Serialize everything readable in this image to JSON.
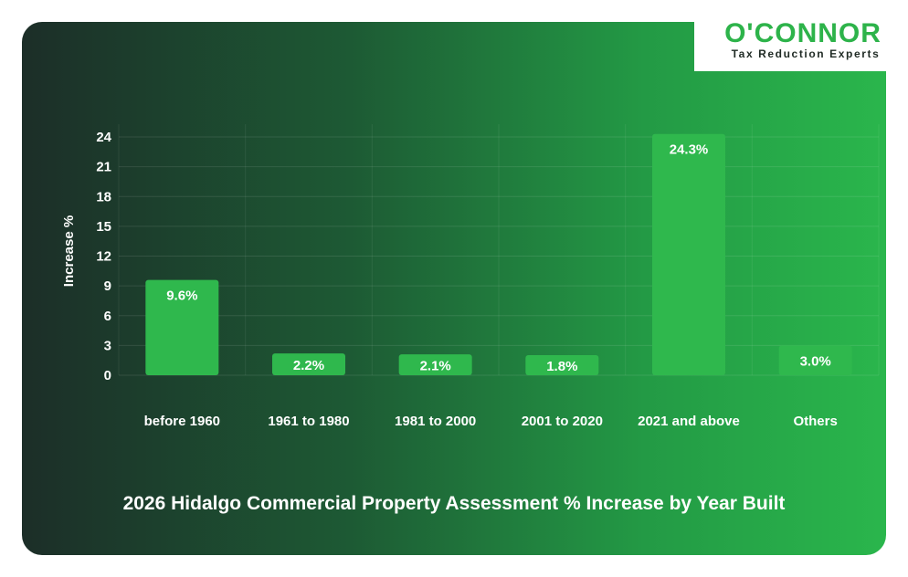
{
  "brand": {
    "name": "O'CONNOR",
    "tagline": "Tax Reduction Experts",
    "color": "#2db34a"
  },
  "chart_data": {
    "type": "bar",
    "title": "2026 Hidalgo Commercial Property Assessment % Increase by Year Built",
    "xlabel": "",
    "ylabel": "Increase %",
    "categories": [
      "before 1960",
      "1961 to 1980",
      "1981 to 2000",
      "2001 to 2020",
      "2021 and above",
      "Others"
    ],
    "values": [
      9.6,
      2.2,
      2.1,
      1.8,
      24.3,
      3.0
    ],
    "data_labels": [
      "9.6%",
      "2.2%",
      "2.1%",
      "1.8%",
      "24.3%",
      "3.0%"
    ],
    "yticks": [
      0,
      3,
      6,
      9,
      12,
      15,
      18,
      21,
      24
    ],
    "ylim": [
      0,
      24
    ],
    "grid": true,
    "bar_color": "#2fb84d"
  }
}
